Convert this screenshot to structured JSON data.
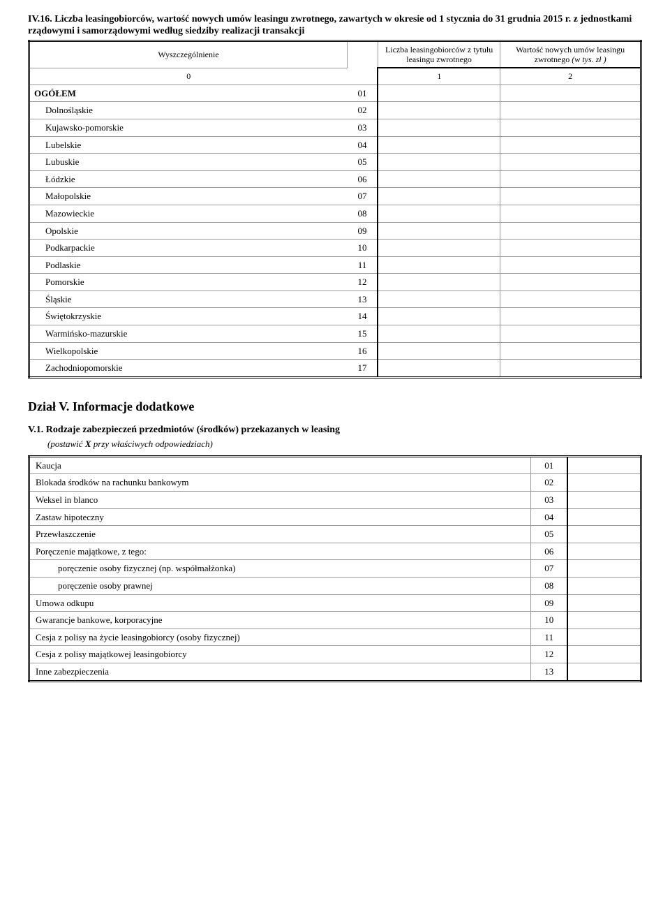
{
  "table1": {
    "title": "IV.16. Liczba leasingobiorców, wartość nowych umów leasingu zwrotnego, zawartych w okresie od 1 stycznia do 31 grudnia 2015 r. z jednostkami rządowymi i samorządowymi według siedziby realizacji transakcji",
    "header_label": "Wyszczególnienie",
    "header_col1": "Liczba leasingobiorców z tytułu leasingu zwrotnego",
    "header_col2_a": "Wartość nowych umów leasingu zwrotnego ",
    "header_col2_b": "(w tys. zł )",
    "num0": "0",
    "num1": "1",
    "num2": "2",
    "rows": [
      {
        "label": "OGÓŁEM",
        "code": "01",
        "bold": true,
        "indent": false
      },
      {
        "label": "Dolnośląskie",
        "code": "02",
        "bold": false,
        "indent": true
      },
      {
        "label": "Kujawsko-pomorskie",
        "code": "03",
        "bold": false,
        "indent": true
      },
      {
        "label": "Lubelskie",
        "code": "04",
        "bold": false,
        "indent": true
      },
      {
        "label": "Lubuskie",
        "code": "05",
        "bold": false,
        "indent": true
      },
      {
        "label": "Łódzkie",
        "code": "06",
        "bold": false,
        "indent": true
      },
      {
        "label": "Małopolskie",
        "code": "07",
        "bold": false,
        "indent": true
      },
      {
        "label": "Mazowieckie",
        "code": "08",
        "bold": false,
        "indent": true
      },
      {
        "label": "Opolskie",
        "code": "09",
        "bold": false,
        "indent": true
      },
      {
        "label": "Podkarpackie",
        "code": "10",
        "bold": false,
        "indent": true
      },
      {
        "label": "Podlaskie",
        "code": "11",
        "bold": false,
        "indent": true
      },
      {
        "label": "Pomorskie",
        "code": "12",
        "bold": false,
        "indent": true
      },
      {
        "label": "Śląskie",
        "code": "13",
        "bold": false,
        "indent": true
      },
      {
        "label": "Świętokrzyskie",
        "code": "14",
        "bold": false,
        "indent": true
      },
      {
        "label": "Warmińsko-mazurskie",
        "code": "15",
        "bold": false,
        "indent": true
      },
      {
        "label": "Wielkopolskie",
        "code": "16",
        "bold": false,
        "indent": true
      },
      {
        "label": "Zachodniopomorskie",
        "code": "17",
        "bold": false,
        "indent": true
      }
    ]
  },
  "section5_title": "Dział V. Informacje dodatkowe",
  "table2": {
    "title": "V.1. Rodzaje zabezpieczeń przedmiotów (środków) przekazanych w leasing",
    "subtitle_a": "(postawić ",
    "subtitle_b": "X",
    "subtitle_c": " przy właściwych odpowiedziach)",
    "rows": [
      {
        "label": "Kaucja",
        "code": "01",
        "indent": 0
      },
      {
        "label": "Blokada środków na rachunku bankowym",
        "code": "02",
        "indent": 0
      },
      {
        "label": "Weksel in blanco",
        "code": "03",
        "indent": 0
      },
      {
        "label": "Zastaw hipoteczny",
        "code": "04",
        "indent": 0
      },
      {
        "label": "Przewłaszczenie",
        "code": "05",
        "indent": 0
      },
      {
        "label": "Poręczenie majątkowe, z tego:",
        "code": "06",
        "indent": 0
      },
      {
        "label": "poręczenie osoby fizycznej (np. współmałżonka)",
        "code": "07",
        "indent": 1
      },
      {
        "label": "poręczenie osoby prawnej",
        "code": "08",
        "indent": 1
      },
      {
        "label": "Umowa odkupu",
        "code": "09",
        "indent": 0
      },
      {
        "label": "Gwarancje bankowe, korporacyjne",
        "code": "10",
        "indent": 0
      },
      {
        "label": "Cesja z polisy na życie leasingobiorcy (osoby fizycznej)",
        "code": "11",
        "indent": 0
      },
      {
        "label": "Cesja z polisy majątkowej leasingobiorcy",
        "code": "12",
        "indent": 0
      },
      {
        "label": "Inne zabezpieczenia",
        "code": "13",
        "indent": 0
      }
    ]
  }
}
